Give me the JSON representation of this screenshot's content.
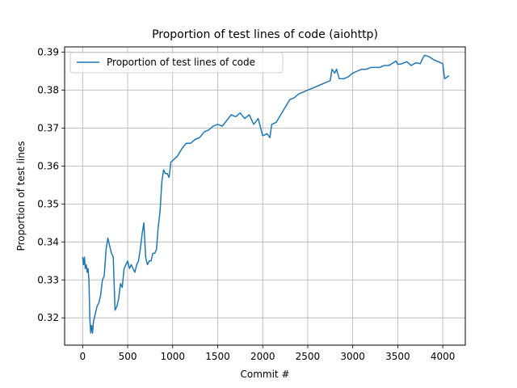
{
  "chart_data": {
    "type": "line",
    "title": "Proportion of test lines of code (aiohttp)",
    "xlabel": "Commit #",
    "ylabel": "Proportion of test lines",
    "xlim": [
      -200,
      4250
    ],
    "ylim": [
      0.3128,
      0.3914
    ],
    "xticks": [
      0,
      500,
      1000,
      1500,
      2000,
      2500,
      3000,
      3500,
      4000
    ],
    "yticks": [
      0.32,
      0.33,
      0.34,
      0.35,
      0.36,
      0.37,
      0.38,
      0.39
    ],
    "xtick_labels": [
      "0",
      "500",
      "1000",
      "1500",
      "2000",
      "2500",
      "3000",
      "3500",
      "4000"
    ],
    "ytick_labels": [
      "0.32",
      "0.33",
      "0.34",
      "0.35",
      "0.36",
      "0.37",
      "0.38",
      "0.39"
    ],
    "grid": true,
    "legend_position": "top-left",
    "colors": {
      "series": "#1f77b4"
    },
    "series": [
      {
        "name": "Proportion of test lines of code",
        "x": [
          0,
          10,
          20,
          30,
          40,
          50,
          60,
          70,
          80,
          90,
          100,
          110,
          120,
          140,
          160,
          180,
          200,
          220,
          240,
          260,
          280,
          300,
          320,
          340,
          360,
          380,
          400,
          420,
          440,
          460,
          480,
          500,
          520,
          540,
          560,
          580,
          600,
          620,
          640,
          660,
          680,
          700,
          720,
          740,
          760,
          780,
          800,
          820,
          840,
          860,
          880,
          900,
          920,
          940,
          960,
          980,
          1000,
          1050,
          1100,
          1150,
          1200,
          1250,
          1300,
          1350,
          1400,
          1450,
          1500,
          1550,
          1600,
          1650,
          1700,
          1750,
          1800,
          1850,
          1900,
          1950,
          2000,
          2050,
          2080,
          2100,
          2150,
          2200,
          2250,
          2300,
          2350,
          2400,
          2450,
          2500,
          2550,
          2600,
          2650,
          2700,
          2750,
          2770,
          2800,
          2820,
          2850,
          2900,
          2950,
          3000,
          3050,
          3100,
          3150,
          3200,
          3250,
          3300,
          3350,
          3400,
          3450,
          3480,
          3500,
          3550,
          3600,
          3650,
          3700,
          3750,
          3780,
          3800,
          3850,
          3900,
          3950,
          4000,
          4020,
          4050,
          4070
        ],
        "values": [
          0.336,
          0.334,
          0.336,
          0.333,
          0.334,
          0.332,
          0.333,
          0.33,
          0.32,
          0.316,
          0.318,
          0.316,
          0.319,
          0.321,
          0.323,
          0.324,
          0.326,
          0.33,
          0.331,
          0.338,
          0.341,
          0.339,
          0.337,
          0.336,
          0.322,
          0.323,
          0.325,
          0.329,
          0.328,
          0.333,
          0.334,
          0.335,
          0.333,
          0.334,
          0.333,
          0.332,
          0.334,
          0.335,
          0.338,
          0.342,
          0.345,
          0.336,
          0.334,
          0.335,
          0.335,
          0.337,
          0.337,
          0.338,
          0.344,
          0.348,
          0.356,
          0.359,
          0.358,
          0.358,
          0.357,
          0.361,
          0.3615,
          0.3625,
          0.3645,
          0.366,
          0.366,
          0.367,
          0.3675,
          0.369,
          0.3695,
          0.3705,
          0.371,
          0.3705,
          0.372,
          0.3735,
          0.373,
          0.374,
          0.3725,
          0.3735,
          0.371,
          0.3725,
          0.368,
          0.3685,
          0.3675,
          0.371,
          0.3715,
          0.3735,
          0.3755,
          0.3775,
          0.378,
          0.379,
          0.3795,
          0.38,
          0.3805,
          0.381,
          0.3815,
          0.382,
          0.3825,
          0.3855,
          0.3845,
          0.3855,
          0.383,
          0.383,
          0.3835,
          0.3845,
          0.385,
          0.3855,
          0.3855,
          0.386,
          0.386,
          0.386,
          0.3865,
          0.3865,
          0.3872,
          0.3877,
          0.3868,
          0.387,
          0.3875,
          0.3865,
          0.3872,
          0.387,
          0.3885,
          0.3892,
          0.3888,
          0.388,
          0.3875,
          0.387,
          0.383,
          0.3835,
          0.3838
        ]
      }
    ]
  }
}
